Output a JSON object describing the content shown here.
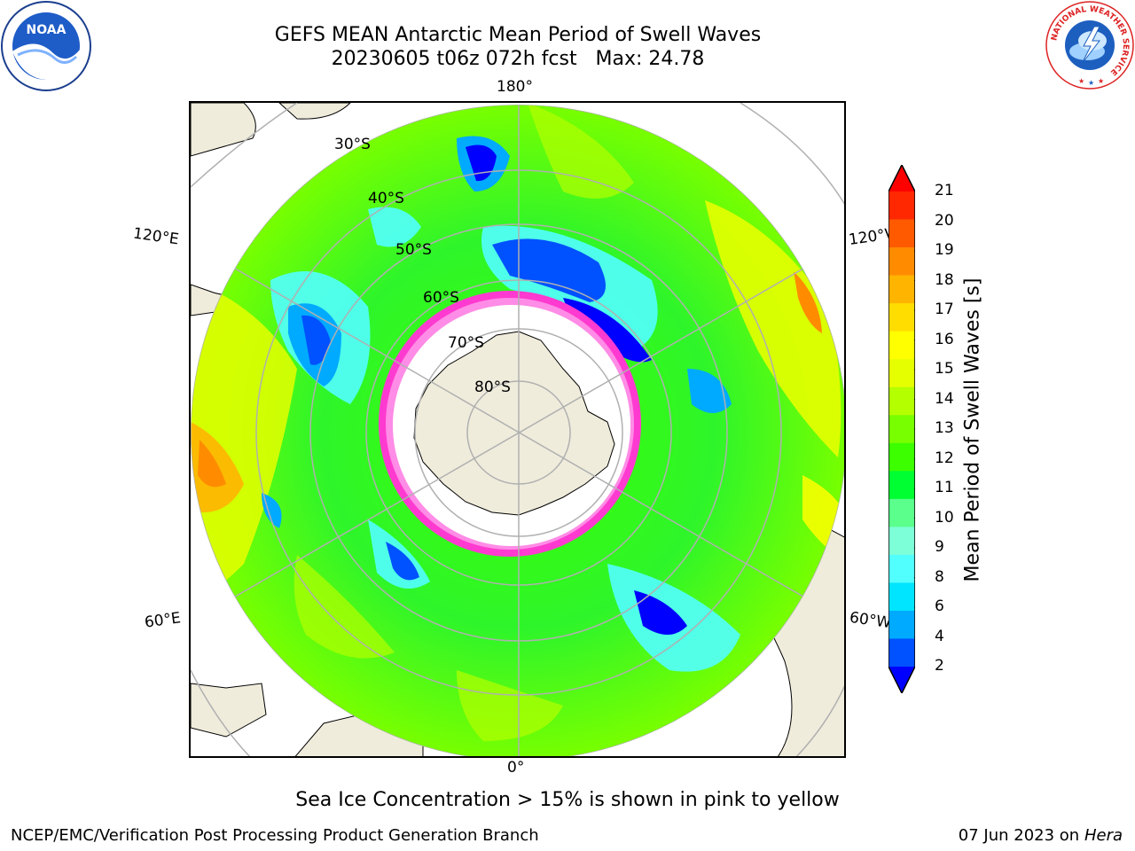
{
  "header": {
    "title_line1": "GEFS MEAN Antarctic Mean Period of Swell Waves",
    "title_line2": "20230605 t06z 072h fcst   Max: 24.78"
  },
  "logos": {
    "left": "noaa-logo",
    "left_text": "NOAA",
    "right": "nws-logo",
    "right_ring_text": "NATIONAL WEATHER SERVICE"
  },
  "map": {
    "projection": "south-polar-stereographic",
    "lon_labels": {
      "top": "180°",
      "bottom": "0°",
      "upper_left": "120°E",
      "upper_right": "120°W",
      "lower_left": "60°E",
      "lower_right": "60°W"
    },
    "lat_labels": [
      "30°S",
      "40°S",
      "50°S",
      "60°S",
      "70°S",
      "80°S"
    ],
    "colors": {
      "land": "#efecdc",
      "grid": "#b0b0b0",
      "sea_ice": "#ff3ad0"
    }
  },
  "colorbar": {
    "label": "Mean Period of Swell Waves [s]",
    "ticks": [
      "21",
      "20",
      "19",
      "18",
      "17",
      "16",
      "15",
      "14",
      "13",
      "12",
      "11",
      "10",
      "9",
      "8",
      "6",
      "4",
      "2"
    ],
    "colors": [
      "#0000ff",
      "#0051ff",
      "#00aaff",
      "#00e5ff",
      "#52ffff",
      "#7dffd7",
      "#5aff8c",
      "#00ff32",
      "#3cff00",
      "#78ff00",
      "#b4ff00",
      "#e6ff00",
      "#ffff00",
      "#ffdd00",
      "#ffb400",
      "#ff8c00",
      "#ff5a00",
      "#ff2800",
      "#ff0000"
    ]
  },
  "footer": {
    "sea_ice_caption": "Sea Ice Concentration > 15% is shown in pink to yellow",
    "credit": "NCEP/EMC/Verification Post Processing Product Generation Branch",
    "date": "07 Jun 2023 on",
    "machine": "Hera"
  }
}
